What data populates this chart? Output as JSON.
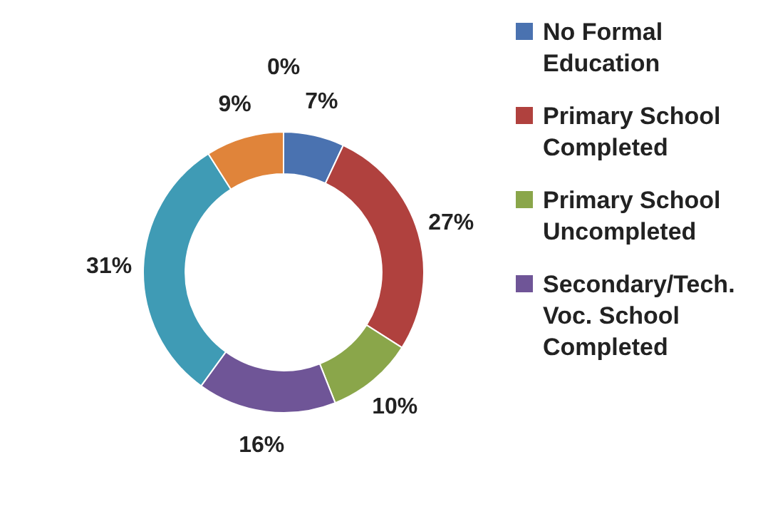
{
  "chart_data": {
    "type": "donut",
    "categories": [
      "No Formal Education",
      "Primary School Completed",
      "Primary School Uncompleted",
      "Secondary/Tech. Voc.  School Completed",
      null,
      null,
      null
    ],
    "values": [
      7,
      27,
      10,
      16,
      31,
      9,
      0
    ],
    "colors": [
      "#4a72b0",
      "#b0413e",
      "#8aa64a",
      "#6f5597",
      "#3f9bb5",
      "#e0843a",
      "#2c4d75"
    ],
    "value_labels": [
      "7%",
      "27%",
      "10%",
      "16%",
      "31%",
      "9%",
      "0%"
    ],
    "legend": "right"
  }
}
